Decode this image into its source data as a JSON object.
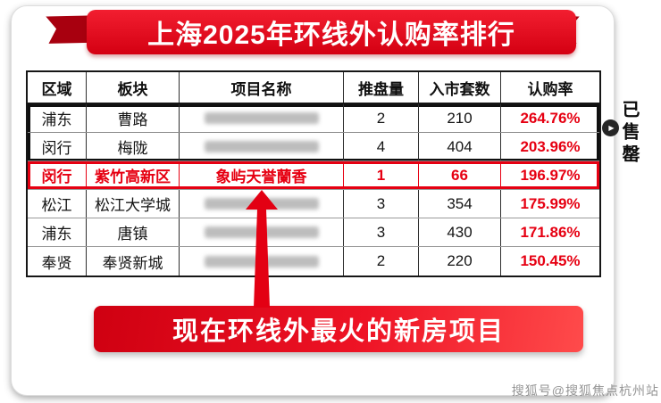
{
  "banner": {
    "title": "上海2025年环线外认购率排行"
  },
  "chart_data": {
    "type": "table",
    "title": "上海2025年环线外认购率排行",
    "columns": [
      "区域",
      "板块",
      "项目名称",
      "推盘量",
      "入市套数",
      "认购率"
    ],
    "rows": [
      {
        "region": "浦东",
        "sector": "曹路",
        "project": "",
        "redacted": true,
        "launches": "2",
        "units": "210",
        "rate": "264.76%",
        "sold_out_group": true
      },
      {
        "region": "闵行",
        "sector": "梅陇",
        "project": "",
        "redacted": true,
        "launches": "4",
        "units": "404",
        "rate": "203.96%",
        "sold_out_group": true
      },
      {
        "region": "闵行",
        "sector": "紫竹高新区",
        "project": "象屿天誉蘭香",
        "redacted": false,
        "launches": "1",
        "units": "66",
        "rate": "196.97%",
        "highlight": true
      },
      {
        "region": "松江",
        "sector": "松江大学城",
        "project": "",
        "redacted": true,
        "launches": "3",
        "units": "354",
        "rate": "175.99%"
      },
      {
        "region": "浦东",
        "sector": "唐镇",
        "project": "",
        "redacted": true,
        "launches": "3",
        "units": "430",
        "rate": "171.86%"
      },
      {
        "region": "奉贤",
        "sector": "奉贤新城",
        "project": "",
        "redacted": true,
        "launches": "2",
        "units": "220",
        "rate": "150.45%"
      }
    ]
  },
  "soldout_label": "已售罄",
  "callout": {
    "text": "现在环线外最火的新房项目"
  },
  "watermark": "搜狐号@搜狐焦点杭州站",
  "icons": {
    "play": "▶"
  },
  "colors": {
    "accent": "#e60012",
    "dark_red": "#a8000f",
    "border_black": "#161616"
  }
}
